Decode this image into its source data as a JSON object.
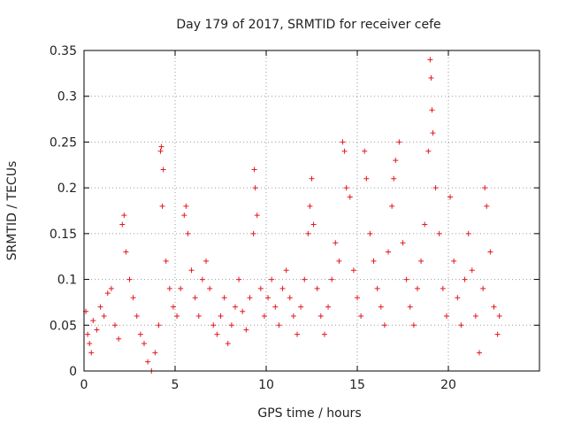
{
  "chart_data": {
    "type": "scatter",
    "title": "Day 179 of 2017, SRMTID for receiver cefe",
    "xlabel": "GPS time / hours",
    "ylabel": "SRMTID / TECUs",
    "xlim": [
      0,
      25
    ],
    "ylim": [
      0,
      0.35
    ],
    "x_ticks": [
      "0",
      "5",
      "10",
      "15",
      "20"
    ],
    "y_ticks": [
      "0",
      "0.05",
      "0.1",
      "0.15",
      "0.2",
      "0.25",
      "0.3",
      "0.35"
    ],
    "grid": true,
    "marker": "+",
    "color": "#e41a1c",
    "series": [
      {
        "name": "SRMTID",
        "points": [
          [
            0.1,
            0.065
          ],
          [
            0.2,
            0.04
          ],
          [
            0.3,
            0.03
          ],
          [
            0.4,
            0.02
          ],
          [
            0.5,
            0.055
          ],
          [
            0.7,
            0.045
          ],
          [
            0.9,
            0.07
          ],
          [
            1.1,
            0.06
          ],
          [
            1.3,
            0.085
          ],
          [
            1.5,
            0.09
          ],
          [
            1.7,
            0.05
          ],
          [
            1.9,
            0.035
          ],
          [
            2.1,
            0.16
          ],
          [
            2.2,
            0.17
          ],
          [
            2.3,
            0.13
          ],
          [
            2.5,
            0.1
          ],
          [
            2.7,
            0.08
          ],
          [
            2.9,
            0.06
          ],
          [
            3.1,
            0.04
          ],
          [
            3.3,
            0.03
          ],
          [
            3.5,
            0.01
          ],
          [
            3.7,
            0.0
          ],
          [
            3.9,
            0.02
          ],
          [
            4.1,
            0.05
          ],
          [
            4.2,
            0.24
          ],
          [
            4.25,
            0.245
          ],
          [
            4.3,
            0.18
          ],
          [
            4.35,
            0.22
          ],
          [
            4.5,
            0.12
          ],
          [
            4.7,
            0.09
          ],
          [
            4.9,
            0.07
          ],
          [
            5.1,
            0.06
          ],
          [
            5.3,
            0.09
          ],
          [
            5.5,
            0.17
          ],
          [
            5.6,
            0.18
          ],
          [
            5.7,
            0.15
          ],
          [
            5.9,
            0.11
          ],
          [
            6.1,
            0.08
          ],
          [
            6.3,
            0.06
          ],
          [
            6.5,
            0.1
          ],
          [
            6.7,
            0.12
          ],
          [
            6.9,
            0.09
          ],
          [
            7.1,
            0.05
          ],
          [
            7.3,
            0.04
          ],
          [
            7.5,
            0.06
          ],
          [
            7.7,
            0.08
          ],
          [
            7.9,
            0.03
          ],
          [
            8.1,
            0.05
          ],
          [
            8.3,
            0.07
          ],
          [
            8.5,
            0.1
          ],
          [
            8.7,
            0.065
          ],
          [
            8.9,
            0.045
          ],
          [
            9.1,
            0.08
          ],
          [
            9.3,
            0.15
          ],
          [
            9.35,
            0.22
          ],
          [
            9.4,
            0.2
          ],
          [
            9.5,
            0.17
          ],
          [
            9.7,
            0.09
          ],
          [
            9.9,
            0.06
          ],
          [
            10.1,
            0.08
          ],
          [
            10.3,
            0.1
          ],
          [
            10.5,
            0.07
          ],
          [
            10.7,
            0.05
          ],
          [
            10.9,
            0.09
          ],
          [
            11.1,
            0.11
          ],
          [
            11.3,
            0.08
          ],
          [
            11.5,
            0.06
          ],
          [
            11.7,
            0.04
          ],
          [
            11.9,
            0.07
          ],
          [
            12.1,
            0.1
          ],
          [
            12.3,
            0.15
          ],
          [
            12.4,
            0.18
          ],
          [
            12.5,
            0.21
          ],
          [
            12.6,
            0.16
          ],
          [
            12.8,
            0.09
          ],
          [
            13.0,
            0.06
          ],
          [
            13.2,
            0.04
          ],
          [
            13.4,
            0.07
          ],
          [
            13.6,
            0.1
          ],
          [
            13.8,
            0.14
          ],
          [
            14.0,
            0.12
          ],
          [
            14.2,
            0.25
          ],
          [
            14.3,
            0.24
          ],
          [
            14.4,
            0.2
          ],
          [
            14.6,
            0.19
          ],
          [
            14.8,
            0.11
          ],
          [
            15.0,
            0.08
          ],
          [
            15.2,
            0.06
          ],
          [
            15.4,
            0.24
          ],
          [
            15.5,
            0.21
          ],
          [
            15.7,
            0.15
          ],
          [
            15.9,
            0.12
          ],
          [
            16.1,
            0.09
          ],
          [
            16.3,
            0.07
          ],
          [
            16.5,
            0.05
          ],
          [
            16.7,
            0.13
          ],
          [
            16.9,
            0.18
          ],
          [
            17.0,
            0.21
          ],
          [
            17.1,
            0.23
          ],
          [
            17.3,
            0.25
          ],
          [
            17.5,
            0.14
          ],
          [
            17.7,
            0.1
          ],
          [
            17.9,
            0.07
          ],
          [
            18.1,
            0.05
          ],
          [
            18.3,
            0.09
          ],
          [
            18.5,
            0.12
          ],
          [
            18.7,
            0.16
          ],
          [
            18.9,
            0.24
          ],
          [
            19.0,
            0.34
          ],
          [
            19.05,
            0.32
          ],
          [
            19.1,
            0.285
          ],
          [
            19.15,
            0.26
          ],
          [
            19.3,
            0.2
          ],
          [
            19.5,
            0.15
          ],
          [
            19.7,
            0.09
          ],
          [
            19.9,
            0.06
          ],
          [
            20.1,
            0.19
          ],
          [
            20.3,
            0.12
          ],
          [
            20.5,
            0.08
          ],
          [
            20.7,
            0.05
          ],
          [
            20.9,
            0.1
          ],
          [
            21.1,
            0.15
          ],
          [
            21.3,
            0.11
          ],
          [
            21.5,
            0.06
          ],
          [
            21.7,
            0.02
          ],
          [
            21.9,
            0.09
          ],
          [
            22.0,
            0.2
          ],
          [
            22.1,
            0.18
          ],
          [
            22.3,
            0.13
          ],
          [
            22.5,
            0.07
          ],
          [
            22.7,
            0.04
          ],
          [
            22.8,
            0.06
          ]
        ]
      }
    ]
  }
}
